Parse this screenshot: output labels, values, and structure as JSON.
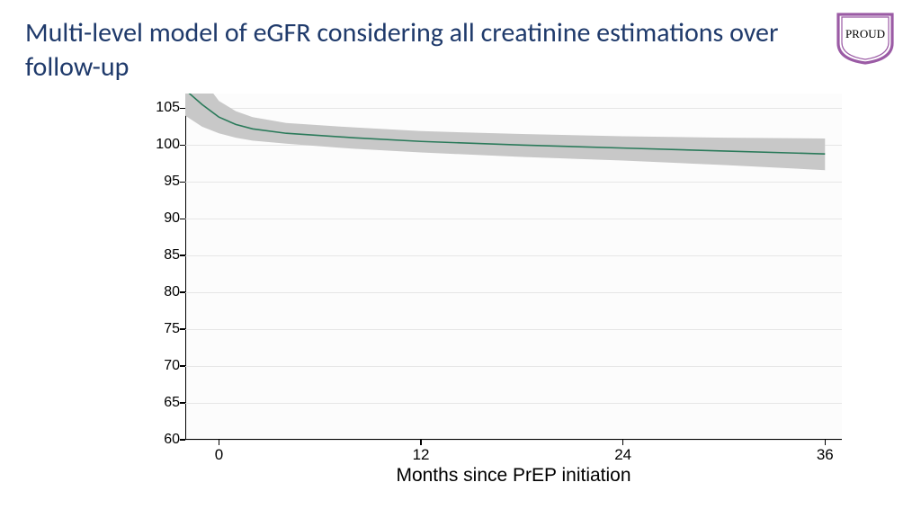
{
  "title": "Multi-level model of eGFR considering all creatinine estimations over follow-up",
  "title_color": "#1f3a6b",
  "title_fontsize": 30,
  "logo": {
    "text": "PROUD",
    "shield_outer": "#9b5ba5",
    "shield_inner": "#ffffff",
    "text_color": "#000000"
  },
  "chart": {
    "type": "line",
    "xlabel": "Months since PrEP initiation",
    "xlabel_fontsize": 21,
    "ylim": [
      60,
      107
    ],
    "yticks": [
      60,
      65,
      70,
      75,
      80,
      85,
      90,
      95,
      100,
      105
    ],
    "xlim": [
      -2,
      37
    ],
    "xticks": [
      0,
      12,
      24,
      36
    ],
    "tick_fontsize": 16,
    "background_color": "#fcfcfc",
    "grid_color": "#e6e6e6",
    "axis_color": "#000000",
    "line_color": "#2a7a5a",
    "line_width": 1.6,
    "ci_color": "#c8c8c8",
    "ci_opacity": 1.0,
    "x_values": [
      -2,
      -1,
      0,
      1,
      2,
      4,
      8,
      12,
      18,
      24,
      30,
      36
    ],
    "mean_values": [
      107.5,
      105.5,
      103.8,
      102.8,
      102.2,
      101.6,
      101.0,
      100.5,
      100.0,
      99.6,
      99.2,
      98.8
    ],
    "ci_lower": [
      104.0,
      102.5,
      101.6,
      101.0,
      100.6,
      100.2,
      99.5,
      99.0,
      98.4,
      97.9,
      97.3,
      96.6
    ],
    "ci_upper": [
      112.0,
      109.0,
      106.0,
      104.6,
      103.8,
      103.0,
      102.4,
      101.9,
      101.5,
      101.2,
      101.0,
      100.9
    ]
  }
}
